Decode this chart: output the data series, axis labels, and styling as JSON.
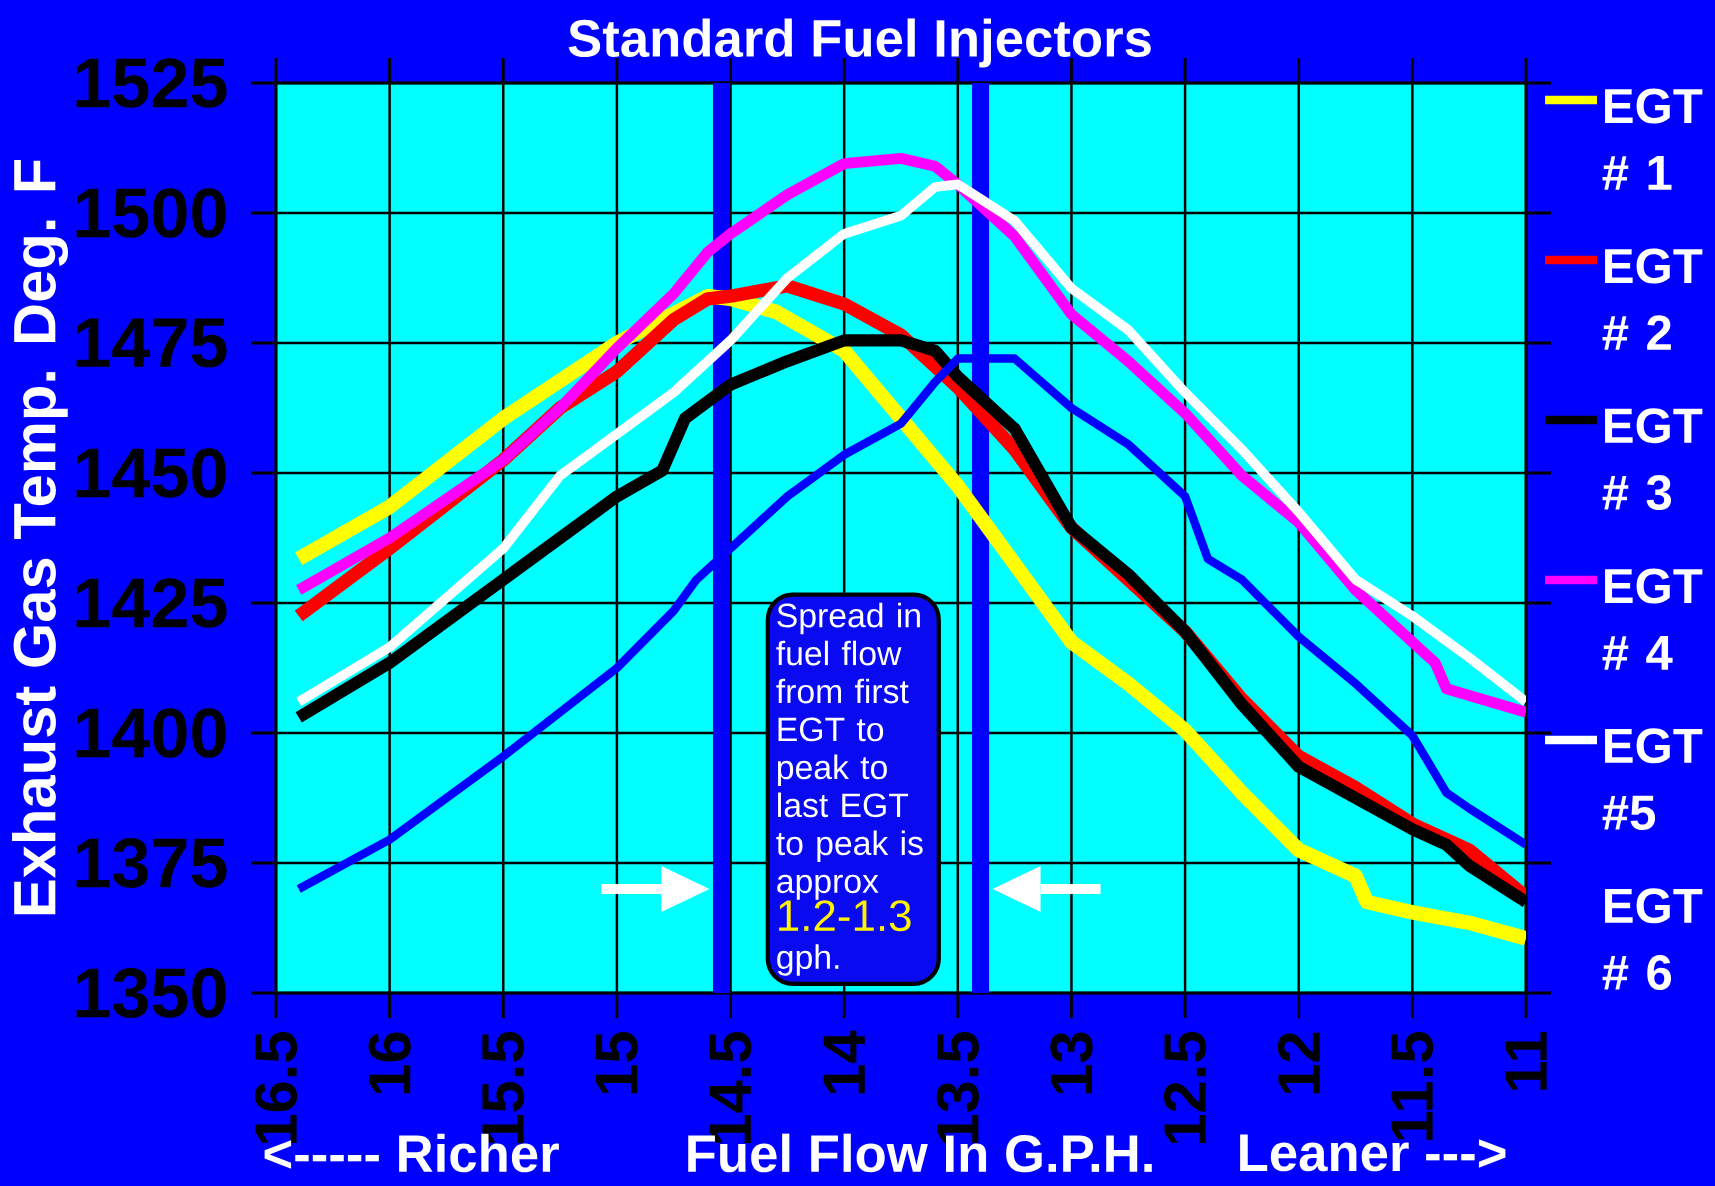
{
  "chart_data": {
    "type": "line",
    "title": "Standard Fuel Injectors",
    "xlabel": "Fuel Flow   In  G.P.H.",
    "ylabel": "Exhaust Gas  Temp. Deg. F",
    "xlim": [
      16.5,
      11
    ],
    "xticks": [
      16.5,
      16,
      15.5,
      15,
      14.5,
      14,
      13.5,
      13,
      12.5,
      12,
      11.5,
      11
    ],
    "ylim": [
      1350,
      1525
    ],
    "yticks": [
      1350,
      1375,
      1400,
      1425,
      1450,
      1475,
      1500,
      1525
    ],
    "grid": true,
    "legend": "right",
    "annotations": [
      "<-----   Richer",
      "Leaner  --->",
      "Spread in fuel flow from first EGT  to peak to last EGT to peak is approx",
      "1.2-1.3",
      "gph."
    ],
    "ref_lines": [
      {
        "axis": "x",
        "value": 14.54,
        "color": "#0000ff"
      },
      {
        "axis": "x",
        "value": 13.4,
        "color": "#0000ff"
      }
    ],
    "series": [
      {
        "name": "EGT # 1",
        "color": "#ffff00",
        "x": [
          16.4,
          16.0,
          15.5,
          15.0,
          14.6,
          14.5,
          14.3,
          14.0,
          13.5,
          13.25,
          13.0,
          12.75,
          12.5,
          12.25,
          12.0,
          11.75,
          11.7,
          11.5,
          11.25,
          11.0
        ],
        "values": [
          1433.5,
          1443.5,
          1460.5,
          1475,
          1484,
          1483.5,
          1481,
          1473.5,
          1447.5,
          1432.5,
          1417.5,
          1409.5,
          1400.5,
          1388.5,
          1377.5,
          1372.5,
          1367.5,
          1365.5,
          1363.5,
          1360.5
        ]
      },
      {
        "name": "EGT # 2",
        "color": "#ff0000",
        "x": [
          16.4,
          16.0,
          15.5,
          15.25,
          15.0,
          14.75,
          14.6,
          14.5,
          14.25,
          14.0,
          13.75,
          13.5,
          13.25,
          13.0,
          12.75,
          12.5,
          12.25,
          12.0,
          11.75,
          11.5,
          11.25,
          11.0
        ],
        "values": [
          1422.5,
          1435.5,
          1452.5,
          1462.5,
          1469.5,
          1479.5,
          1483.5,
          1484,
          1486,
          1482.5,
          1476.5,
          1466.5,
          1454.5,
          1439.5,
          1429.5,
          1419.5,
          1406.5,
          1395.5,
          1389.5,
          1382.5,
          1377.5,
          1368.5
        ]
      },
      {
        "name": "EGT # 3",
        "color": "#000000",
        "x": [
          16.4,
          16.0,
          15.5,
          15.25,
          15.0,
          14.8,
          14.7,
          14.5,
          14.25,
          14.0,
          13.75,
          13.6,
          13.5,
          13.25,
          13.0,
          12.75,
          12.5,
          12.25,
          12.0,
          11.75,
          11.5,
          11.35,
          11.25,
          11.0
        ],
        "values": [
          1403,
          1413.5,
          1429.5,
          1437.5,
          1445.5,
          1450.5,
          1460.5,
          1467,
          1471.5,
          1475.5,
          1475.5,
          1473.5,
          1468.5,
          1458.5,
          1439.5,
          1430.5,
          1419.5,
          1405.5,
          1393.5,
          1387.5,
          1381.5,
          1378.5,
          1374.5,
          1367.5
        ]
      },
      {
        "name": "EGT # 4",
        "color": "#ff00ff",
        "x": [
          16.4,
          16.0,
          15.5,
          15.25,
          15.0,
          14.75,
          14.6,
          14.5,
          14.25,
          14.0,
          13.75,
          13.6,
          13.5,
          13.25,
          13.0,
          12.75,
          12.5,
          12.25,
          12.0,
          11.75,
          11.5,
          11.4,
          11.35,
          11.0
        ],
        "values": [
          1427.5,
          1437.5,
          1452.5,
          1462.5,
          1474,
          1484.5,
          1492.5,
          1496,
          1503.5,
          1509.5,
          1510.5,
          1509,
          1505.5,
          1495.5,
          1480.5,
          1471.5,
          1461.5,
          1449.5,
          1440.5,
          1427.5,
          1417.5,
          1413.5,
          1408.5,
          1404
        ]
      },
      {
        "name": "EGT #5",
        "color": "#ffffff",
        "x": [
          16.4,
          16.0,
          15.5,
          15.25,
          15.0,
          14.75,
          14.5,
          14.25,
          14.0,
          13.75,
          13.6,
          13.5,
          13.25,
          13.0,
          12.75,
          12.5,
          12.25,
          12.0,
          11.75,
          11.5,
          11.25,
          11.0
        ],
        "values": [
          1406,
          1416.5,
          1435.5,
          1449.5,
          1457.5,
          1465.5,
          1475.5,
          1487.5,
          1496,
          1499.5,
          1505,
          1505.5,
          1498.5,
          1485.5,
          1477.5,
          1465.5,
          1454.5,
          1442.5,
          1429.5,
          1422.5,
          1414.5,
          1406
        ]
      },
      {
        "name": "EGT # 6",
        "color": "#0000ff",
        "x": [
          16.4,
          16.0,
          15.5,
          15.0,
          14.75,
          14.65,
          14.5,
          14.25,
          14.0,
          13.75,
          13.6,
          13.5,
          13.25,
          13.0,
          12.75,
          12.5,
          12.4,
          12.25,
          12.0,
          11.75,
          11.5,
          11.35,
          11.25,
          11.0
        ],
        "values": [
          1370,
          1379.5,
          1395.5,
          1412.5,
          1423.5,
          1429.5,
          1435.5,
          1445.5,
          1453.5,
          1459.5,
          1467.5,
          1472,
          1472,
          1462.5,
          1455.5,
          1445.5,
          1433.5,
          1429.5,
          1418.5,
          1409.5,
          1399.5,
          1388.5,
          1385.5,
          1378.5
        ]
      }
    ]
  }
}
